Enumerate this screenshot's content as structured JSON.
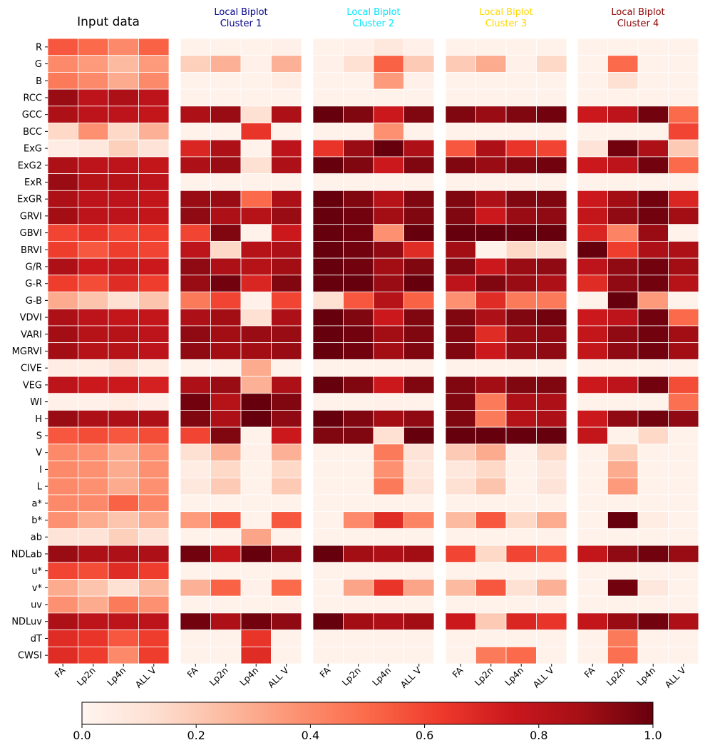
{
  "chart_data": {
    "type": "heatmap",
    "rows": [
      "R",
      "G",
      "B",
      "RCC",
      "GCC",
      "BCC",
      "ExG",
      "ExG2",
      "ExR",
      "ExGR",
      "GRVI",
      "GBVI",
      "BRVI",
      "G/R",
      "G-R",
      "G-B",
      "VDVI",
      "VARI",
      "MGRVI",
      "CIVE",
      "VEG",
      "WI",
      "H",
      "S",
      "V",
      "I",
      "L",
      "a*",
      "b*",
      "ab",
      "NDLab",
      "u*",
      "v*",
      "uv",
      "NDLuv",
      "dT",
      "CWSI"
    ],
    "columns": [
      "FA",
      "Lp2n",
      "Lp4n",
      "ALL V"
    ],
    "panels": [
      {
        "title": "Input data",
        "color": "#000000",
        "values": [
          [
            0.55,
            0.5,
            0.4,
            0.52
          ],
          [
            0.4,
            0.35,
            0.25,
            0.35
          ],
          [
            0.45,
            0.4,
            0.3,
            0.4
          ],
          [
            0.9,
            0.8,
            0.85,
            0.8
          ],
          [
            0.85,
            0.8,
            0.8,
            0.78
          ],
          [
            0.15,
            0.38,
            0.15,
            0.28
          ],
          [
            0.05,
            0.08,
            0.18,
            0.1
          ],
          [
            0.85,
            0.8,
            0.8,
            0.78
          ],
          [
            0.9,
            0.82,
            0.82,
            0.8
          ],
          [
            0.85,
            0.8,
            0.8,
            0.78
          ],
          [
            0.88,
            0.8,
            0.8,
            0.78
          ],
          [
            0.6,
            0.65,
            0.6,
            0.62
          ],
          [
            0.62,
            0.55,
            0.62,
            0.6
          ],
          [
            0.85,
            0.75,
            0.78,
            0.75
          ],
          [
            0.62,
            0.58,
            0.68,
            0.62
          ],
          [
            0.3,
            0.22,
            0.12,
            0.22
          ],
          [
            0.85,
            0.8,
            0.78,
            0.78
          ],
          [
            0.88,
            0.82,
            0.82,
            0.8
          ],
          [
            0.88,
            0.82,
            0.82,
            0.8
          ],
          [
            0.05,
            0.05,
            0.1,
            0.05
          ],
          [
            0.8,
            0.75,
            0.75,
            0.72
          ],
          [
            0.03,
            0.03,
            0.05,
            0.03
          ],
          [
            0.9,
            0.85,
            0.85,
            0.85
          ],
          [
            0.55,
            0.58,
            0.55,
            0.58
          ],
          [
            0.4,
            0.38,
            0.3,
            0.38
          ],
          [
            0.4,
            0.38,
            0.3,
            0.38
          ],
          [
            0.4,
            0.38,
            0.3,
            0.38
          ],
          [
            0.4,
            0.4,
            0.52,
            0.42
          ],
          [
            0.38,
            0.3,
            0.22,
            0.3
          ],
          [
            0.1,
            0.1,
            0.18,
            0.1
          ],
          [
            0.9,
            0.85,
            0.85,
            0.85
          ],
          [
            0.6,
            0.58,
            0.68,
            0.62
          ],
          [
            0.3,
            0.22,
            0.12,
            0.25
          ],
          [
            0.38,
            0.3,
            0.45,
            0.38
          ],
          [
            0.85,
            0.8,
            0.8,
            0.8
          ],
          [
            0.68,
            0.65,
            0.55,
            0.62
          ],
          [
            0.68,
            0.62,
            0.4,
            0.62
          ]
        ]
      },
      {
        "title": "Local Biplot\nCluster 1",
        "color": "#00008b",
        "values": [
          [
            0.02,
            0.02,
            0.02,
            0.03
          ],
          [
            0.18,
            0.28,
            0.03,
            0.28
          ],
          [
            0.02,
            0.02,
            0.02,
            0.05
          ],
          [
            0.02,
            0.02,
            0.02,
            0.02
          ],
          [
            0.85,
            0.9,
            0.12,
            0.85
          ],
          [
            0.02,
            0.02,
            0.65,
            0.02
          ],
          [
            0.7,
            0.85,
            0.02,
            0.8
          ],
          [
            0.85,
            0.9,
            0.12,
            0.85
          ],
          [
            0.02,
            0.02,
            0.02,
            0.02
          ],
          [
            0.9,
            0.9,
            0.5,
            0.85
          ],
          [
            0.92,
            0.85,
            0.82,
            0.9
          ],
          [
            0.6,
            0.95,
            0.02,
            0.75
          ],
          [
            0.8,
            0.15,
            0.82,
            0.85
          ],
          [
            0.92,
            0.85,
            0.82,
            0.88
          ],
          [
            0.9,
            0.98,
            0.7,
            0.95
          ],
          [
            0.45,
            0.6,
            0.03,
            0.6
          ],
          [
            0.85,
            0.88,
            0.12,
            0.85
          ],
          [
            0.92,
            0.88,
            0.9,
            0.9
          ],
          [
            0.92,
            0.88,
            0.88,
            0.9
          ],
          [
            0.02,
            0.02,
            0.3,
            0.02
          ],
          [
            0.85,
            0.9,
            0.28,
            0.85
          ],
          [
            0.98,
            0.82,
            1.0,
            0.95
          ],
          [
            0.95,
            0.85,
            1.0,
            0.92
          ],
          [
            0.6,
            0.95,
            0.02,
            0.75
          ],
          [
            0.12,
            0.28,
            0.03,
            0.28
          ],
          [
            0.05,
            0.15,
            0.02,
            0.15
          ],
          [
            0.08,
            0.2,
            0.02,
            0.2
          ],
          [
            0.02,
            0.02,
            0.02,
            0.02
          ],
          [
            0.35,
            0.55,
            0.02,
            0.55
          ],
          [
            0.02,
            0.02,
            0.32,
            0.02
          ],
          [
            0.98,
            0.78,
            1.0,
            0.92
          ],
          [
            0.02,
            0.02,
            0.02,
            0.02
          ],
          [
            0.28,
            0.52,
            0.03,
            0.5
          ],
          [
            0.02,
            0.02,
            0.02,
            0.02
          ],
          [
            0.98,
            0.85,
            0.98,
            0.92
          ],
          [
            0.02,
            0.02,
            0.65,
            0.02
          ],
          [
            0.02,
            0.02,
            0.68,
            0.02
          ]
        ]
      },
      {
        "title": "Local Biplot\nCluster 2",
        "color": "#00e5ff",
        "values": [
          [
            0.02,
            0.03,
            0.08,
            0.03
          ],
          [
            0.03,
            0.12,
            0.52,
            0.2
          ],
          [
            0.02,
            0.02,
            0.35,
            0.03
          ],
          [
            0.02,
            0.02,
            0.02,
            0.02
          ],
          [
            1.0,
            0.95,
            0.75,
            0.95
          ],
          [
            0.02,
            0.02,
            0.38,
            0.02
          ],
          [
            0.65,
            0.9,
            1.0,
            0.85
          ],
          [
            1.0,
            0.95,
            0.75,
            0.95
          ],
          [
            0.02,
            0.02,
            0.02,
            0.02
          ],
          [
            1.0,
            0.95,
            0.82,
            0.95
          ],
          [
            1.0,
            0.98,
            0.88,
            0.95
          ],
          [
            1.0,
            0.98,
            0.38,
            1.0
          ],
          [
            1.0,
            0.98,
            0.92,
            0.68
          ],
          [
            1.0,
            0.98,
            0.88,
            0.95
          ],
          [
            1.0,
            1.0,
            0.9,
            1.0
          ],
          [
            0.12,
            0.55,
            0.82,
            0.52
          ],
          [
            1.0,
            0.95,
            0.75,
            0.95
          ],
          [
            1.0,
            0.98,
            0.88,
            0.95
          ],
          [
            1.0,
            0.98,
            0.88,
            0.95
          ],
          [
            0.02,
            0.02,
            0.02,
            0.02
          ],
          [
            1.0,
            0.95,
            0.75,
            0.95
          ],
          [
            0.02,
            0.02,
            0.03,
            0.02
          ],
          [
            1.0,
            0.95,
            0.88,
            0.92
          ],
          [
            0.95,
            0.95,
            0.12,
            1.0
          ],
          [
            0.02,
            0.02,
            0.45,
            0.1
          ],
          [
            0.02,
            0.02,
            0.38,
            0.08
          ],
          [
            0.02,
            0.02,
            0.45,
            0.1
          ],
          [
            0.02,
            0.02,
            0.02,
            0.02
          ],
          [
            0.02,
            0.4,
            0.68,
            0.42
          ],
          [
            0.02,
            0.02,
            0.02,
            0.02
          ],
          [
            1.0,
            0.88,
            0.85,
            0.88
          ],
          [
            0.02,
            0.02,
            0.02,
            0.02
          ],
          [
            0.02,
            0.32,
            0.65,
            0.32
          ],
          [
            0.02,
            0.02,
            0.02,
            0.02
          ],
          [
            1.0,
            0.88,
            0.85,
            0.88
          ],
          [
            0.02,
            0.02,
            0.02,
            0.02
          ],
          [
            0.02,
            0.02,
            0.02,
            0.02
          ]
        ]
      },
      {
        "title": "Local Biplot\nCluster 3",
        "color": "#ffd700",
        "values": [
          [
            0.02,
            0.02,
            0.02,
            0.02
          ],
          [
            0.2,
            0.3,
            0.03,
            0.15
          ],
          [
            0.02,
            0.02,
            0.02,
            0.02
          ],
          [
            0.02,
            0.02,
            0.02,
            0.02
          ],
          [
            0.95,
            0.9,
            0.95,
            0.98
          ],
          [
            0.02,
            0.02,
            0.02,
            0.02
          ],
          [
            0.55,
            0.85,
            0.65,
            0.6
          ],
          [
            0.95,
            0.9,
            0.95,
            0.98
          ],
          [
            0.02,
            0.02,
            0.02,
            0.02
          ],
          [
            0.95,
            0.85,
            0.95,
            0.95
          ],
          [
            0.95,
            0.75,
            0.9,
            0.92
          ],
          [
            1.0,
            1.0,
            1.0,
            1.0
          ],
          [
            0.88,
            0.02,
            0.15,
            0.12
          ],
          [
            0.95,
            0.75,
            0.9,
            0.92
          ],
          [
            0.8,
            0.95,
            0.9,
            0.85
          ],
          [
            0.38,
            0.68,
            0.45,
            0.45
          ],
          [
            0.95,
            0.85,
            0.95,
            0.98
          ],
          [
            0.95,
            0.68,
            0.9,
            0.92
          ],
          [
            0.95,
            0.75,
            0.9,
            0.92
          ],
          [
            0.02,
            0.02,
            0.02,
            0.02
          ],
          [
            0.95,
            0.88,
            0.95,
            0.95
          ],
          [
            0.95,
            0.45,
            0.85,
            0.85
          ],
          [
            0.95,
            0.45,
            0.82,
            0.85
          ],
          [
            1.0,
            1.0,
            1.0,
            1.0
          ],
          [
            0.2,
            0.3,
            0.03,
            0.15
          ],
          [
            0.08,
            0.15,
            0.02,
            0.08
          ],
          [
            0.12,
            0.22,
            0.02,
            0.1
          ],
          [
            0.02,
            0.02,
            0.02,
            0.02
          ],
          [
            0.25,
            0.55,
            0.15,
            0.3
          ],
          [
            0.02,
            0.02,
            0.02,
            0.02
          ],
          [
            0.6,
            0.15,
            0.6,
            0.55
          ],
          [
            0.02,
            0.02,
            0.02,
            0.02
          ],
          [
            0.25,
            0.55,
            0.12,
            0.28
          ],
          [
            0.02,
            0.02,
            0.02,
            0.02
          ],
          [
            0.75,
            0.2,
            0.7,
            0.65
          ],
          [
            0.02,
            0.02,
            0.02,
            0.02
          ],
          [
            0.02,
            0.45,
            0.5,
            0.02
          ]
        ]
      },
      {
        "title": "Local Biplot\nCluster 4",
        "color": "#8b0000",
        "values": [
          [
            0.02,
            0.02,
            0.02,
            0.02
          ],
          [
            0.02,
            0.5,
            0.02,
            0.02
          ],
          [
            0.02,
            0.12,
            0.02,
            0.02
          ],
          [
            0.02,
            0.02,
            0.02,
            0.02
          ],
          [
            0.75,
            0.8,
            0.98,
            0.5
          ],
          [
            0.02,
            0.02,
            0.02,
            0.6
          ],
          [
            0.1,
            0.98,
            0.85,
            0.2
          ],
          [
            0.75,
            0.8,
            0.98,
            0.5
          ],
          [
            0.02,
            0.02,
            0.02,
            0.02
          ],
          [
            0.75,
            0.88,
            0.98,
            0.7
          ],
          [
            0.78,
            0.92,
            0.98,
            0.88
          ],
          [
            0.7,
            0.42,
            0.9,
            0.02
          ],
          [
            1.0,
            0.62,
            0.85,
            0.85
          ],
          [
            0.8,
            0.92,
            0.98,
            0.88
          ],
          [
            0.68,
            0.92,
            0.98,
            0.82
          ],
          [
            0.02,
            1.0,
            0.35,
            0.02
          ],
          [
            0.75,
            0.8,
            0.98,
            0.5
          ],
          [
            0.78,
            0.92,
            0.98,
            0.88
          ],
          [
            0.78,
            0.92,
            0.98,
            0.88
          ],
          [
            0.02,
            0.02,
            0.02,
            0.02
          ],
          [
            0.75,
            0.8,
            0.98,
            0.58
          ],
          [
            0.02,
            0.02,
            0.02,
            0.48
          ],
          [
            0.75,
            0.92,
            0.98,
            0.92
          ],
          [
            0.78,
            0.02,
            0.15,
            0.02
          ],
          [
            0.02,
            0.18,
            0.02,
            0.02
          ],
          [
            0.02,
            0.3,
            0.02,
            0.02
          ],
          [
            0.02,
            0.35,
            0.02,
            0.02
          ],
          [
            0.02,
            0.02,
            0.02,
            0.02
          ],
          [
            0.02,
            1.0,
            0.05,
            0.02
          ],
          [
            0.02,
            0.02,
            0.02,
            0.02
          ],
          [
            0.78,
            0.92,
            0.98,
            0.9
          ],
          [
            0.02,
            0.02,
            0.02,
            0.02
          ],
          [
            0.02,
            0.98,
            0.08,
            0.02
          ],
          [
            0.02,
            0.02,
            0.02,
            0.02
          ],
          [
            0.78,
            0.9,
            0.98,
            0.85
          ],
          [
            0.02,
            0.45,
            0.02,
            0.02
          ],
          [
            0.02,
            0.48,
            0.02,
            0.02
          ]
        ]
      }
    ],
    "colorbar": {
      "min": 0,
      "max": 1,
      "ticks": [
        "0.0",
        "0.2",
        "0.4",
        "0.6",
        "0.8",
        "1.0"
      ],
      "colormap": "Reds"
    }
  }
}
